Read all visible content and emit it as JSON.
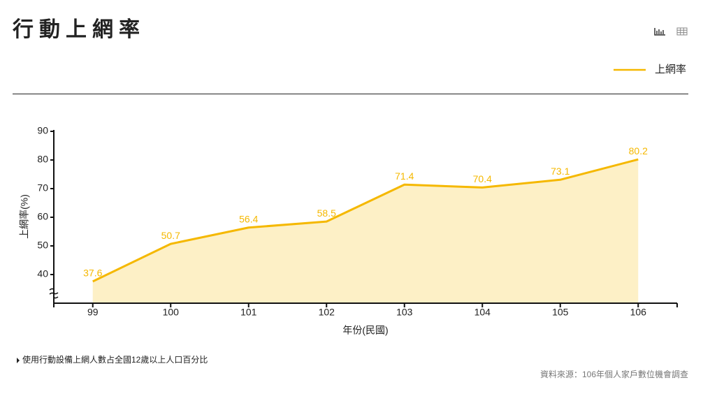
{
  "title": "行動上網率",
  "note": "使用行動設備上網人數占全國12歲以上人口百分比",
  "source": "資料來源：106年個人家戶數位機會調查",
  "chart_data": {
    "type": "line",
    "x_label": "年份(民國)",
    "y_label": "上網率(%)",
    "categories": [
      "99",
      "100",
      "101",
      "102",
      "103",
      "104",
      "105",
      "106"
    ],
    "series": [
      {
        "name": "上網率",
        "color": "#f5b800",
        "area_color": "#fdf0c6",
        "values": [
          37.6,
          50.7,
          56.4,
          58.5,
          71.4,
          70.4,
          73.1,
          80.2
        ]
      }
    ],
    "ylim": [
      30,
      90
    ],
    "yticks": [
      40,
      50,
      60,
      70,
      80,
      90
    ]
  }
}
